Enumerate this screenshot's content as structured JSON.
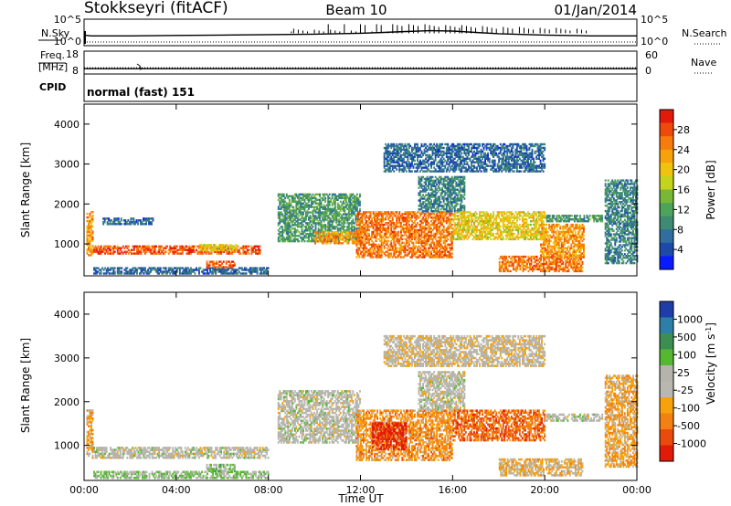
{
  "header": {
    "station": "Stokkseyri (fitACF)",
    "beam": "Beam 10",
    "date": "01/Jan/2014"
  },
  "colors": {
    "power": [
      "#0a1aff",
      "#1d4aa8",
      "#2f6e9e",
      "#3f8a72",
      "#4ea35a",
      "#79b837",
      "#c6d31b",
      "#f0c40e",
      "#f7a20a",
      "#f67c0b",
      "#f04a0a",
      "#e11a0a"
    ],
    "velocity": [
      "#1f3da8",
      "#2d7fa8",
      "#3c8e53",
      "#56b830",
      "#b4b4ad",
      "#b9b8b0",
      "#f7a20a",
      "#f38011",
      "#ea4a0c",
      "#e11a0a"
    ],
    "nsky": "#000000"
  },
  "chart_data": [
    {
      "type": "line",
      "panel": "nsky_nsearch",
      "left_label": "N.Sky",
      "right_label": "N.Search",
      "left_ticks": [
        "10^5",
        "10^0"
      ],
      "right_ticks": [
        "10^5",
        "10^0"
      ],
      "series": [
        {
          "name": "N.Sky",
          "style": "solid",
          "x": [
            0,
            0.3,
            2,
            4,
            6,
            8,
            10,
            12,
            13,
            14,
            15,
            16,
            17,
            18,
            20,
            22,
            24
          ],
          "y_log": [
            1.8,
            1.6,
            1.6,
            1.7,
            1.8,
            1.9,
            2.0,
            2.2,
            2.4,
            2.6,
            2.8,
            2.7,
            2.4,
            2.1,
            1.8,
            1.6,
            1.6
          ]
        },
        {
          "name": "N.Search",
          "style": "dotted",
          "x": [
            0,
            24
          ],
          "y_log": [
            0.2,
            0.2
          ]
        }
      ]
    },
    {
      "type": "line",
      "panel": "freq_nave",
      "left_label": "Freq. [MHz]",
      "right_label": "Nave",
      "left_ticks": [
        "18",
        "8"
      ],
      "right_ticks": [
        "60",
        "0"
      ],
      "series": [
        {
          "name": "Freq",
          "style": "solid",
          "x": [
            0,
            24
          ],
          "y": [
            10.2,
            10.2
          ]
        },
        {
          "name": "Nave",
          "style": "dotted",
          "x": [
            0,
            24
          ],
          "y": [
            16,
            16
          ]
        }
      ]
    },
    {
      "type": "text",
      "panel": "cpid",
      "label": "CPID",
      "value": "normal (fast) 151"
    },
    {
      "type": "heatmap",
      "panel": "power",
      "ylabel": "Slant Range [km]",
      "ylim": [
        200,
        4500
      ],
      "yticks": [
        1000,
        2000,
        3000,
        4000
      ],
      "xlim": [
        0,
        24
      ],
      "colorbar": {
        "label": "Power [dB]",
        "ticks": [
          "28",
          "24",
          "20",
          "16",
          "12",
          "8",
          "4"
        ],
        "range": [
          0,
          30
        ]
      },
      "regions": [
        {
          "t0": 0.1,
          "t1": 0.4,
          "r0": 700,
          "r1": 1800,
          "value": 22
        },
        {
          "t0": 0.4,
          "t1": 7.6,
          "r0": 740,
          "r1": 940,
          "value": 26
        },
        {
          "t0": 0.4,
          "t1": 8.0,
          "r0": 240,
          "r1": 420,
          "value": 6
        },
        {
          "t0": 5.0,
          "t1": 6.6,
          "r0": 820,
          "r1": 1000,
          "value": 18
        },
        {
          "t0": 5.3,
          "t1": 6.5,
          "r0": 400,
          "r1": 560,
          "value": 26
        },
        {
          "t0": 0.8,
          "t1": 3.0,
          "r0": 1480,
          "r1": 1650,
          "value": 6
        },
        {
          "t0": 8.4,
          "t1": 12.0,
          "r0": 1050,
          "r1": 2250,
          "value": 10
        },
        {
          "t0": 10.0,
          "t1": 12.0,
          "r0": 1000,
          "r1": 1300,
          "value": 22
        },
        {
          "t0": 11.8,
          "t1": 16.0,
          "r0": 650,
          "r1": 1800,
          "value": 24
        },
        {
          "t0": 14.5,
          "t1": 16.5,
          "r0": 1800,
          "r1": 2700,
          "value": 8
        },
        {
          "t0": 16.0,
          "t1": 20.0,
          "r0": 1100,
          "r1": 1800,
          "value": 18
        },
        {
          "t0": 18.0,
          "t1": 21.6,
          "r0": 300,
          "r1": 700,
          "value": 24
        },
        {
          "t0": 19.8,
          "t1": 21.7,
          "r0": 650,
          "r1": 1500,
          "value": 22
        },
        {
          "t0": 20.0,
          "t1": 22.5,
          "r0": 1550,
          "r1": 1700,
          "value": 10
        },
        {
          "t0": 22.6,
          "t1": 24.0,
          "r0": 500,
          "r1": 2600,
          "value": 8
        },
        {
          "t0": 13.0,
          "t1": 20.0,
          "r0": 2800,
          "r1": 3500,
          "value": 6
        }
      ]
    },
    {
      "type": "heatmap",
      "panel": "velocity",
      "ylabel": "Slant Range [km]",
      "ylim": [
        200,
        4500
      ],
      "yticks": [
        1000,
        2000,
        3000,
        4000
      ],
      "xlim": [
        0,
        24
      ],
      "xticks": [
        "00:00",
        "04:00",
        "08:00",
        "12:00",
        "16:00",
        "20:00",
        "00:00"
      ],
      "xlabel": "Time UT",
      "colorbar": {
        "label": "Velocity [m s^-1]",
        "ticks": [
          "1000",
          "500",
          "100",
          "25",
          "-25",
          "-100",
          "-500",
          "-1000"
        ],
        "range": [
          -1000,
          1000
        ]
      },
      "regions": [
        {
          "t0": 0.1,
          "t1": 0.4,
          "r0": 700,
          "r1": 1800,
          "value": -300
        },
        {
          "t0": 0.4,
          "t1": 8.0,
          "r0": 700,
          "r1": 950,
          "value": 0
        },
        {
          "t0": 0.4,
          "t1": 8.0,
          "r0": 240,
          "r1": 420,
          "value": 150
        },
        {
          "t0": 5.3,
          "t1": 6.5,
          "r0": 400,
          "r1": 560,
          "value": 200
        },
        {
          "t0": 8.4,
          "t1": 12.0,
          "r0": 1050,
          "r1": 2250,
          "value": 0
        },
        {
          "t0": 11.8,
          "t1": 16.0,
          "r0": 650,
          "r1": 1800,
          "value": -400
        },
        {
          "t0": 12.5,
          "t1": 14.0,
          "r0": 900,
          "r1": 1500,
          "value": -900
        },
        {
          "t0": 14.5,
          "t1": 16.5,
          "r0": 1800,
          "r1": 2700,
          "value": 0
        },
        {
          "t0": 16.0,
          "t1": 20.0,
          "r0": 1100,
          "r1": 1800,
          "value": -600
        },
        {
          "t0": 18.0,
          "t1": 21.6,
          "r0": 300,
          "r1": 700,
          "value": -200
        },
        {
          "t0": 20.0,
          "t1": 22.5,
          "r0": 1550,
          "r1": 1700,
          "value": 0
        },
        {
          "t0": 22.6,
          "t1": 24.0,
          "r0": 500,
          "r1": 2600,
          "value": -300
        },
        {
          "t0": 13.0,
          "t1": 20.0,
          "r0": 2800,
          "r1": 3500,
          "value": -100
        }
      ]
    }
  ]
}
